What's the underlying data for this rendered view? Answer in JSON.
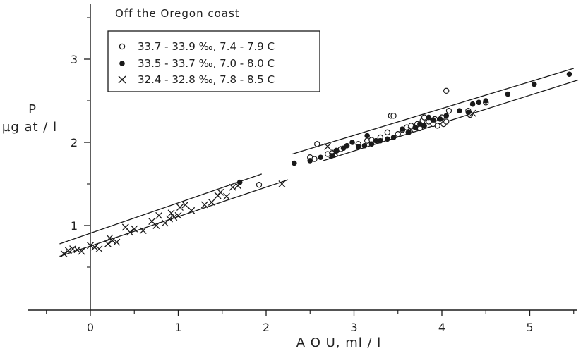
{
  "chart_data": {
    "type": "scatter",
    "title": "Off the Oregon coast",
    "xlabel": "A O U,  ml / l",
    "ylabel_line1": "P",
    "ylabel_line2": "µg at / l",
    "xlim": [
      -0.5,
      5.6
    ],
    "ylim": [
      0.35,
      3.6
    ],
    "xticks": [
      0,
      1,
      2,
      3,
      4,
      5
    ],
    "xtick_labels": [
      "0",
      "1",
      "2",
      "3",
      "4",
      "5"
    ],
    "yticks": [
      1,
      2,
      3
    ],
    "ytick_labels": [
      "1",
      "2",
      "3"
    ],
    "grid": false,
    "legend_position": "top-left",
    "colors": {
      "ink": "#1a1a1a"
    },
    "series": [
      {
        "name": "33.7 - 33.9 ‰,   7.4 - 7.9 C",
        "marker": "open-circle",
        "points": [
          [
            1.92,
            1.49
          ],
          [
            2.5,
            1.82
          ],
          [
            2.55,
            1.8
          ],
          [
            2.58,
            1.98
          ],
          [
            2.7,
            1.86
          ],
          [
            2.75,
            1.87
          ],
          [
            2.8,
            1.9
          ],
          [
            2.85,
            1.92
          ],
          [
            3.05,
            1.98
          ],
          [
            3.15,
            2.02
          ],
          [
            3.2,
            2.03
          ],
          [
            3.3,
            2.06
          ],
          [
            3.38,
            2.12
          ],
          [
            3.42,
            2.32
          ],
          [
            3.45,
            2.32
          ],
          [
            3.5,
            2.1
          ],
          [
            3.55,
            2.15
          ],
          [
            3.6,
            2.18
          ],
          [
            3.62,
            2.12
          ],
          [
            3.65,
            2.2
          ],
          [
            3.7,
            2.18
          ],
          [
            3.72,
            2.22
          ],
          [
            3.75,
            2.17
          ],
          [
            3.78,
            2.26
          ],
          [
            3.8,
            2.3
          ],
          [
            3.85,
            2.25
          ],
          [
            3.9,
            2.22
          ],
          [
            3.92,
            2.28
          ],
          [
            3.95,
            2.2
          ],
          [
            4.0,
            2.3
          ],
          [
            4.02,
            2.22
          ],
          [
            4.05,
            2.25
          ],
          [
            4.05,
            2.62
          ],
          [
            4.08,
            2.38
          ],
          [
            4.3,
            2.38
          ],
          [
            4.32,
            2.33
          ],
          [
            4.5,
            2.48
          ]
        ]
      },
      {
        "name": "33.5 - 33.7 ‰,   7.0 - 8.0 C",
        "marker": "filled-circle",
        "points": [
          [
            1.7,
            1.52
          ],
          [
            2.32,
            1.75
          ],
          [
            2.5,
            1.78
          ],
          [
            2.62,
            1.82
          ],
          [
            2.75,
            1.84
          ],
          [
            2.8,
            1.9
          ],
          [
            2.88,
            1.93
          ],
          [
            2.92,
            1.96
          ],
          [
            2.98,
            2.0
          ],
          [
            3.05,
            1.95
          ],
          [
            3.12,
            1.96
          ],
          [
            3.15,
            2.08
          ],
          [
            3.2,
            1.98
          ],
          [
            3.25,
            2.02
          ],
          [
            3.3,
            2.02
          ],
          [
            3.38,
            2.04
          ],
          [
            3.45,
            2.06
          ],
          [
            3.55,
            2.16
          ],
          [
            3.62,
            2.12
          ],
          [
            3.7,
            2.18
          ],
          [
            3.75,
            2.22
          ],
          [
            3.8,
            2.2
          ],
          [
            3.85,
            2.3
          ],
          [
            3.9,
            2.27
          ],
          [
            3.98,
            2.28
          ],
          [
            4.05,
            2.32
          ],
          [
            4.2,
            2.38
          ],
          [
            4.3,
            2.36
          ],
          [
            4.35,
            2.46
          ],
          [
            4.42,
            2.48
          ],
          [
            4.5,
            2.5
          ],
          [
            4.75,
            2.58
          ],
          [
            5.05,
            2.7
          ],
          [
            5.45,
            2.82
          ]
        ]
      },
      {
        "name": "32.4 - 32.8 ‰,   7.8 - 8.5 C",
        "marker": "cross",
        "points": [
          [
            -0.3,
            0.66
          ],
          [
            -0.25,
            0.7
          ],
          [
            -0.2,
            0.72
          ],
          [
            -0.15,
            0.71
          ],
          [
            -0.1,
            0.69
          ],
          [
            0.0,
            0.76
          ],
          [
            0.05,
            0.74
          ],
          [
            0.1,
            0.72
          ],
          [
            0.2,
            0.78
          ],
          [
            0.22,
            0.85
          ],
          [
            0.25,
            0.82
          ],
          [
            0.3,
            0.8
          ],
          [
            0.4,
            0.98
          ],
          [
            0.45,
            0.92
          ],
          [
            0.5,
            0.96
          ],
          [
            0.6,
            0.94
          ],
          [
            0.7,
            1.05
          ],
          [
            0.75,
            1.0
          ],
          [
            0.78,
            1.12
          ],
          [
            0.85,
            1.03
          ],
          [
            0.9,
            1.08
          ],
          [
            0.92,
            1.15
          ],
          [
            0.95,
            1.1
          ],
          [
            1.0,
            1.12
          ],
          [
            1.02,
            1.22
          ],
          [
            1.08,
            1.25
          ],
          [
            1.15,
            1.18
          ],
          [
            1.3,
            1.25
          ],
          [
            1.38,
            1.28
          ],
          [
            1.45,
            1.36
          ],
          [
            1.48,
            1.4
          ],
          [
            1.55,
            1.35
          ],
          [
            1.62,
            1.46
          ],
          [
            1.68,
            1.48
          ],
          [
            2.18,
            1.5
          ],
          [
            2.7,
            1.95
          ],
          [
            2.75,
            1.85
          ],
          [
            2.78,
            1.88
          ],
          [
            3.65,
            2.15
          ],
          [
            4.35,
            2.35
          ]
        ]
      }
    ],
    "lines": [
      {
        "segments": [
          [
            [
              -0.35,
              0.78
            ],
            [
              1.95,
              1.62
            ]
          ],
          [
            [
              2.3,
              1.86
            ],
            [
              5.5,
              2.89
            ]
          ]
        ]
      },
      {
        "segments": [
          [
            [
              -0.35,
              0.63
            ],
            [
              2.25,
              1.55
            ]
          ],
          [
            [
              2.65,
              1.78
            ],
            [
              5.55,
              2.75
            ]
          ]
        ]
      }
    ]
  }
}
